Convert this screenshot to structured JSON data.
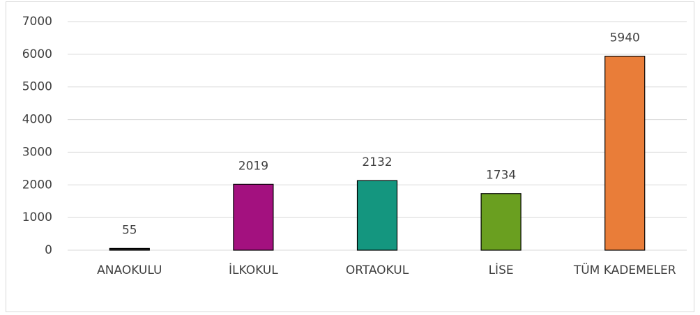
{
  "chart_data": {
    "type": "bar",
    "categories": [
      "ANAOKULU",
      "İLKOKUL",
      "ORTAOKUL",
      "LİSE",
      "TÜM KADEMELER"
    ],
    "values": [
      55,
      2019,
      2132,
      1734,
      5940
    ],
    "colors": [
      "#1f1f1f",
      "#a3117f",
      "#14967f",
      "#6a9f20",
      "#e97d39"
    ],
    "ylim": [
      0,
      7000
    ],
    "yticks": [
      0,
      1000,
      2000,
      3000,
      4000,
      5000,
      6000,
      7000
    ],
    "grid": true
  }
}
